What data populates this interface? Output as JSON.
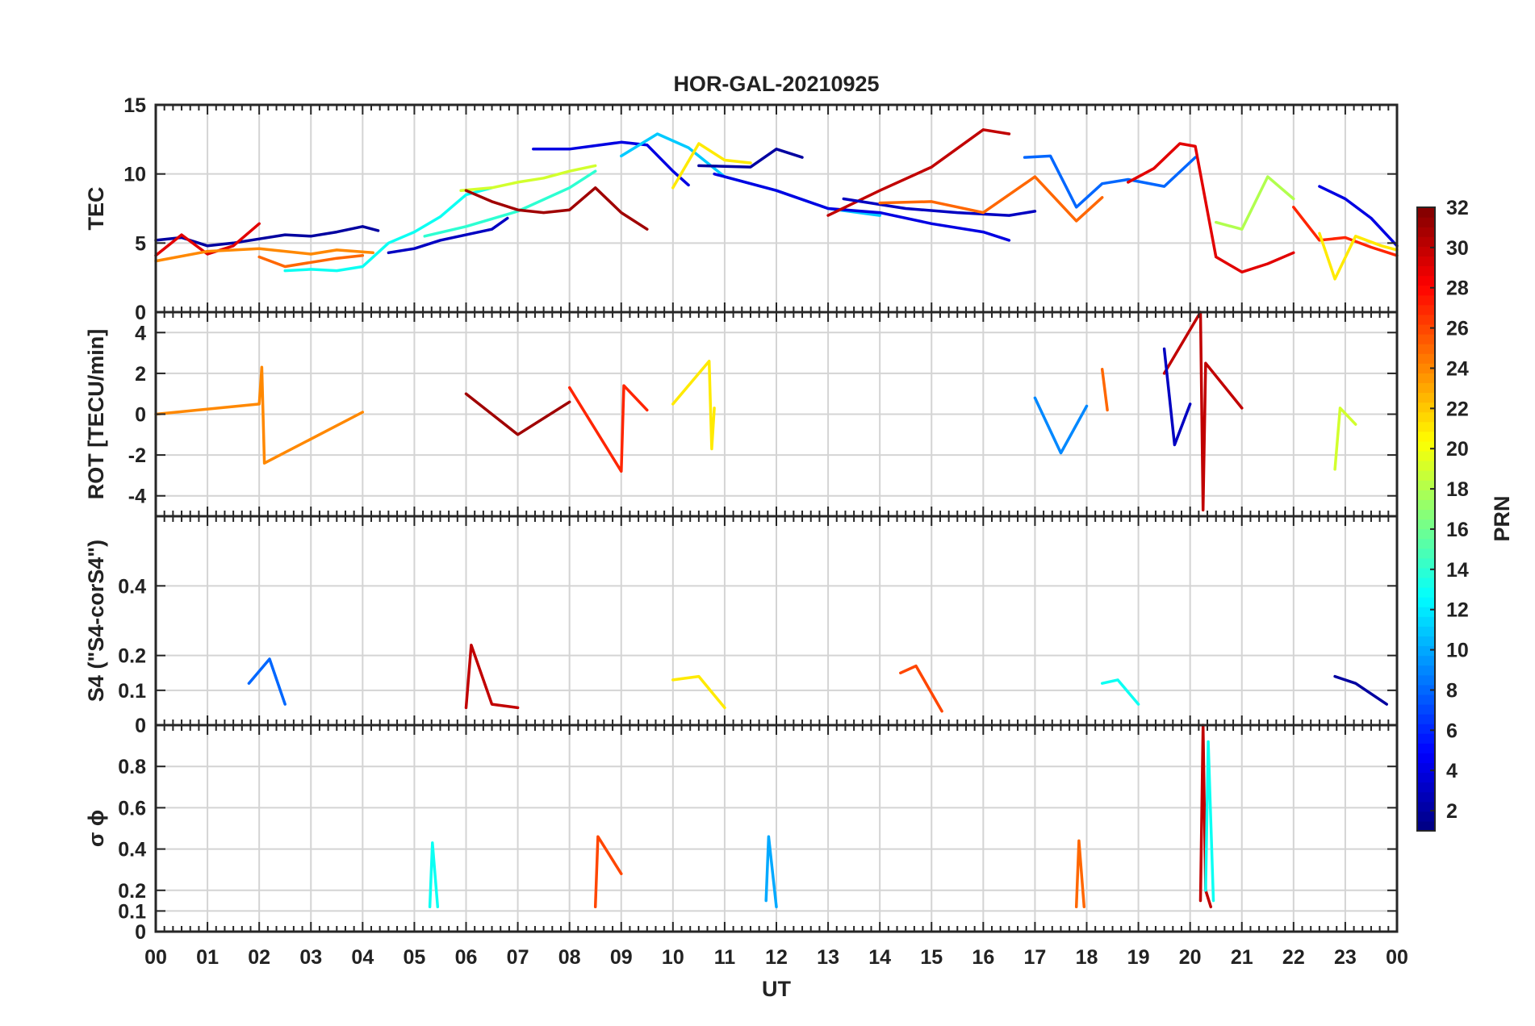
{
  "chart_data": {
    "type": "line",
    "title": "HOR-GAL-20210925",
    "xlabel": "UT",
    "x_tick_labels": [
      "00",
      "01",
      "02",
      "03",
      "04",
      "05",
      "06",
      "07",
      "08",
      "09",
      "10",
      "11",
      "12",
      "13",
      "14",
      "15",
      "16",
      "17",
      "18",
      "19",
      "20",
      "21",
      "22",
      "23",
      "00"
    ],
    "xlim": [
      0,
      24
    ],
    "grid": true,
    "colorbar": {
      "label": "PRN",
      "range": [
        1,
        32
      ],
      "ticks": [
        2,
        4,
        6,
        8,
        10,
        12,
        14,
        16,
        18,
        20,
        22,
        24,
        26,
        28,
        30,
        32
      ],
      "colormap": "jet",
      "colors": [
        "#00008f",
        "#0000ff",
        "#0080ff",
        "#00ffff",
        "#80ff80",
        "#ffff00",
        "#ff8000",
        "#ff0000",
        "#800000"
      ]
    },
    "panels": [
      {
        "ylabel": "TEC",
        "ylim": [
          0,
          15
        ],
        "yticks": [
          0,
          5,
          10,
          15
        ],
        "series": [
          {
            "prn": 2,
            "t": [
              0,
              0.5,
              1,
              1.5,
              2,
              2.5,
              3,
              3.5,
              4,
              4.3
            ],
            "values": [
              5.2,
              5.4,
              4.8,
              5.0,
              5.3,
              5.6,
              5.5,
              5.8,
              6.2,
              5.9
            ]
          },
          {
            "prn": 29,
            "t": [
              0,
              0.5,
              1,
              1.5,
              2
            ],
            "values": [
              4.1,
              5.6,
              4.2,
              4.8,
              6.4
            ]
          },
          {
            "prn": 24,
            "t": [
              0,
              1,
              2,
              3,
              3.5,
              4.2
            ],
            "values": [
              3.7,
              4.4,
              4.6,
              4.2,
              4.5,
              4.3
            ]
          },
          {
            "prn": 25,
            "t": [
              2,
              2.5,
              3,
              3.5,
              4
            ],
            "values": [
              4.0,
              3.3,
              3.6,
              3.9,
              4.1
            ]
          },
          {
            "prn": 13,
            "t": [
              2.5,
              3,
              3.5,
              4,
              4.5,
              5,
              5.5,
              6,
              6.5
            ],
            "values": [
              3.0,
              3.1,
              3.0,
              3.3,
              5.0,
              5.8,
              6.9,
              8.5,
              9.0
            ]
          },
          {
            "prn": 3,
            "t": [
              4.5,
              5,
              5.5,
              6,
              6.5,
              6.8
            ],
            "values": [
              4.3,
              4.6,
              5.2,
              5.6,
              6.0,
              6.8
            ]
          },
          {
            "prn": 19,
            "t": [
              5.9,
              6.5,
              7,
              7.5,
              8,
              8.5
            ],
            "values": [
              8.8,
              9.0,
              9.4,
              9.7,
              10.2,
              10.6
            ]
          },
          {
            "prn": 14,
            "t": [
              5.2,
              6,
              7,
              8,
              8.5
            ],
            "values": [
              5.5,
              6.2,
              7.3,
              9.0,
              10.2
            ]
          },
          {
            "prn": 31,
            "t": [
              6,
              6.5,
              7,
              7.5,
              8,
              8.5,
              9,
              9.5
            ],
            "values": [
              8.8,
              8.0,
              7.4,
              7.2,
              7.4,
              9.0,
              7.2,
              6.0
            ]
          },
          {
            "prn": 4,
            "t": [
              7.3,
              8,
              9,
              9.5,
              10,
              10.3
            ],
            "values": [
              11.8,
              11.8,
              12.3,
              12.1,
              10.2,
              9.2
            ]
          },
          {
            "prn": 11,
            "t": [
              9,
              9.7,
              10.3,
              11,
              12,
              13,
              14
            ],
            "values": [
              11.3,
              12.9,
              11.9,
              9.8,
              8.8,
              7.5,
              7.0
            ]
          },
          {
            "prn": 21,
            "t": [
              10,
              10.5,
              11,
              11.5
            ],
            "values": [
              9.0,
              12.2,
              11.0,
              10.8
            ]
          },
          {
            "prn": 2,
            "t": [
              10.5,
              11.5,
              12,
              12.5
            ],
            "values": [
              10.6,
              10.5,
              11.8,
              11.2
            ]
          },
          {
            "prn": 4,
            "t": [
              10.8,
              12,
              13,
              14,
              15,
              16,
              16.5
            ],
            "values": [
              10.0,
              8.8,
              7.5,
              7.2,
              6.4,
              5.8,
              5.2
            ]
          },
          {
            "prn": 30,
            "t": [
              13,
              14,
              15,
              16,
              16.5
            ],
            "values": [
              7.0,
              8.8,
              10.5,
              13.2,
              12.9
            ]
          },
          {
            "prn": 3,
            "t": [
              13.3,
              14.5,
              15.5,
              16.5,
              17
            ],
            "values": [
              8.2,
              7.5,
              7.2,
              7.0,
              7.3
            ]
          },
          {
            "prn": 25,
            "t": [
              14,
              15,
              16,
              17,
              17.8,
              18.3
            ],
            "values": [
              7.9,
              8.0,
              7.2,
              9.8,
              6.6,
              8.3
            ]
          },
          {
            "prn": 8,
            "t": [
              16.8,
              17.3,
              17.8,
              18.3,
              18.8,
              19.5,
              20.1
            ],
            "values": [
              11.2,
              11.3,
              7.6,
              9.3,
              9.6,
              9.1,
              11.2
            ]
          },
          {
            "prn": 29,
            "t": [
              18.8,
              19.3,
              19.8,
              20.1,
              20.5,
              21,
              21.5,
              22
            ],
            "values": [
              9.4,
              10.4,
              12.2,
              12.0,
              4.0,
              2.9,
              3.5,
              4.3
            ]
          },
          {
            "prn": 18,
            "t": [
              20.5,
              21,
              21.5,
              22
            ],
            "values": [
              6.5,
              6.0,
              9.8,
              8.2
            ]
          },
          {
            "prn": 27,
            "t": [
              22,
              22.5,
              23,
              23.5,
              24
            ],
            "values": [
              7.6,
              5.2,
              5.4,
              4.7,
              4.1
            ]
          },
          {
            "prn": 21,
            "t": [
              22.5,
              22.8,
              23.2,
              23.7,
              24
            ],
            "values": [
              5.7,
              2.4,
              5.5,
              4.8,
              4.5
            ]
          },
          {
            "prn": 4,
            "t": [
              22.5,
              23,
              23.5,
              24
            ],
            "values": [
              9.1,
              8.2,
              6.8,
              4.8
            ]
          }
        ]
      },
      {
        "ylabel": "ROT [TECU/min]",
        "ylim": [
          -5,
          5
        ],
        "yticks": [
          -4,
          -2,
          0,
          2,
          4
        ],
        "series": [
          {
            "prn": 24,
            "t": [
              0,
              2,
              2.05,
              2.1,
              4
            ],
            "values": [
              0,
              0.5,
              2.3,
              -2.4,
              0.1
            ]
          },
          {
            "prn": 31,
            "t": [
              6,
              7,
              8
            ],
            "values": [
              1.0,
              -1.0,
              0.6
            ]
          },
          {
            "prn": 27,
            "t": [
              8,
              9,
              9.05,
              9.5
            ],
            "values": [
              1.3,
              -2.8,
              1.4,
              0.2
            ]
          },
          {
            "prn": 21,
            "t": [
              10,
              10.7,
              10.75,
              10.8
            ],
            "values": [
              0.5,
              2.6,
              -1.7,
              0.3
            ]
          },
          {
            "prn": 30,
            "t": [
              19.5,
              20.2,
              20.25,
              20.3,
              21
            ],
            "values": [
              2.0,
              5.0,
              -4.7,
              2.5,
              0.3
            ]
          },
          {
            "prn": 3,
            "t": [
              19.5,
              19.7,
              20
            ],
            "values": [
              3.2,
              -1.5,
              0.5
            ]
          },
          {
            "prn": 9,
            "t": [
              17,
              17.5,
              18
            ],
            "values": [
              0.8,
              -1.9,
              0.4
            ]
          },
          {
            "prn": 25,
            "t": [
              18.3,
              18.4
            ],
            "values": [
              2.2,
              0.2
            ]
          },
          {
            "prn": 19,
            "t": [
              22.8,
              22.9,
              23.2
            ],
            "values": [
              -2.7,
              0.3,
              -0.5
            ]
          }
        ]
      },
      {
        "ylabel": "S4 (\"S4-corS4\")",
        "ylim": [
          0,
          0.6
        ],
        "yticks": [
          0,
          0.1,
          0.2,
          0.4
        ],
        "series": [
          {
            "prn": 8,
            "t": [
              1.8,
              2.2,
              2.5
            ],
            "values": [
              0.12,
              0.19,
              0.06
            ]
          },
          {
            "prn": 30,
            "t": [
              6.0,
              6.1,
              6.5,
              7
            ],
            "values": [
              0.05,
              0.23,
              0.06,
              0.05
            ]
          },
          {
            "prn": 21,
            "t": [
              10,
              10.5,
              11
            ],
            "values": [
              0.13,
              0.14,
              0.05
            ]
          },
          {
            "prn": 26,
            "t": [
              14.4,
              14.7,
              15.2
            ],
            "values": [
              0.15,
              0.17,
              0.04
            ]
          },
          {
            "prn": 13,
            "t": [
              18.3,
              18.6,
              19
            ],
            "values": [
              0.12,
              0.13,
              0.06
            ]
          },
          {
            "prn": 2,
            "t": [
              22.8,
              23.2,
              23.8
            ],
            "values": [
              0.14,
              0.12,
              0.06
            ]
          }
        ]
      },
      {
        "ylabel": "σ ϕ",
        "ylim": [
          0,
          1
        ],
        "yticks": [
          0,
          0.1,
          0.2,
          0.4,
          0.6,
          0.8
        ],
        "series": [
          {
            "prn": 30,
            "t": [
              20.2,
              20.25,
              20.3,
              20.4
            ],
            "values": [
              0.15,
              1.0,
              0.2,
              0.12
            ]
          },
          {
            "prn": 13,
            "t": [
              20.3,
              20.35,
              20.45
            ],
            "values": [
              0.2,
              0.92,
              0.15
            ]
          },
          {
            "prn": 26,
            "t": [
              8.5,
              8.55,
              9
            ],
            "values": [
              0.12,
              0.46,
              0.28
            ]
          },
          {
            "prn": 10,
            "t": [
              11.8,
              11.85,
              12
            ],
            "values": [
              0.15,
              0.46,
              0.12
            ]
          },
          {
            "prn": 13,
            "t": [
              5.3,
              5.35,
              5.45
            ],
            "values": [
              0.12,
              0.43,
              0.12
            ]
          },
          {
            "prn": 25,
            "t": [
              17.8,
              17.85,
              17.95
            ],
            "values": [
              0.12,
              0.44,
              0.12
            ]
          }
        ]
      }
    ]
  }
}
